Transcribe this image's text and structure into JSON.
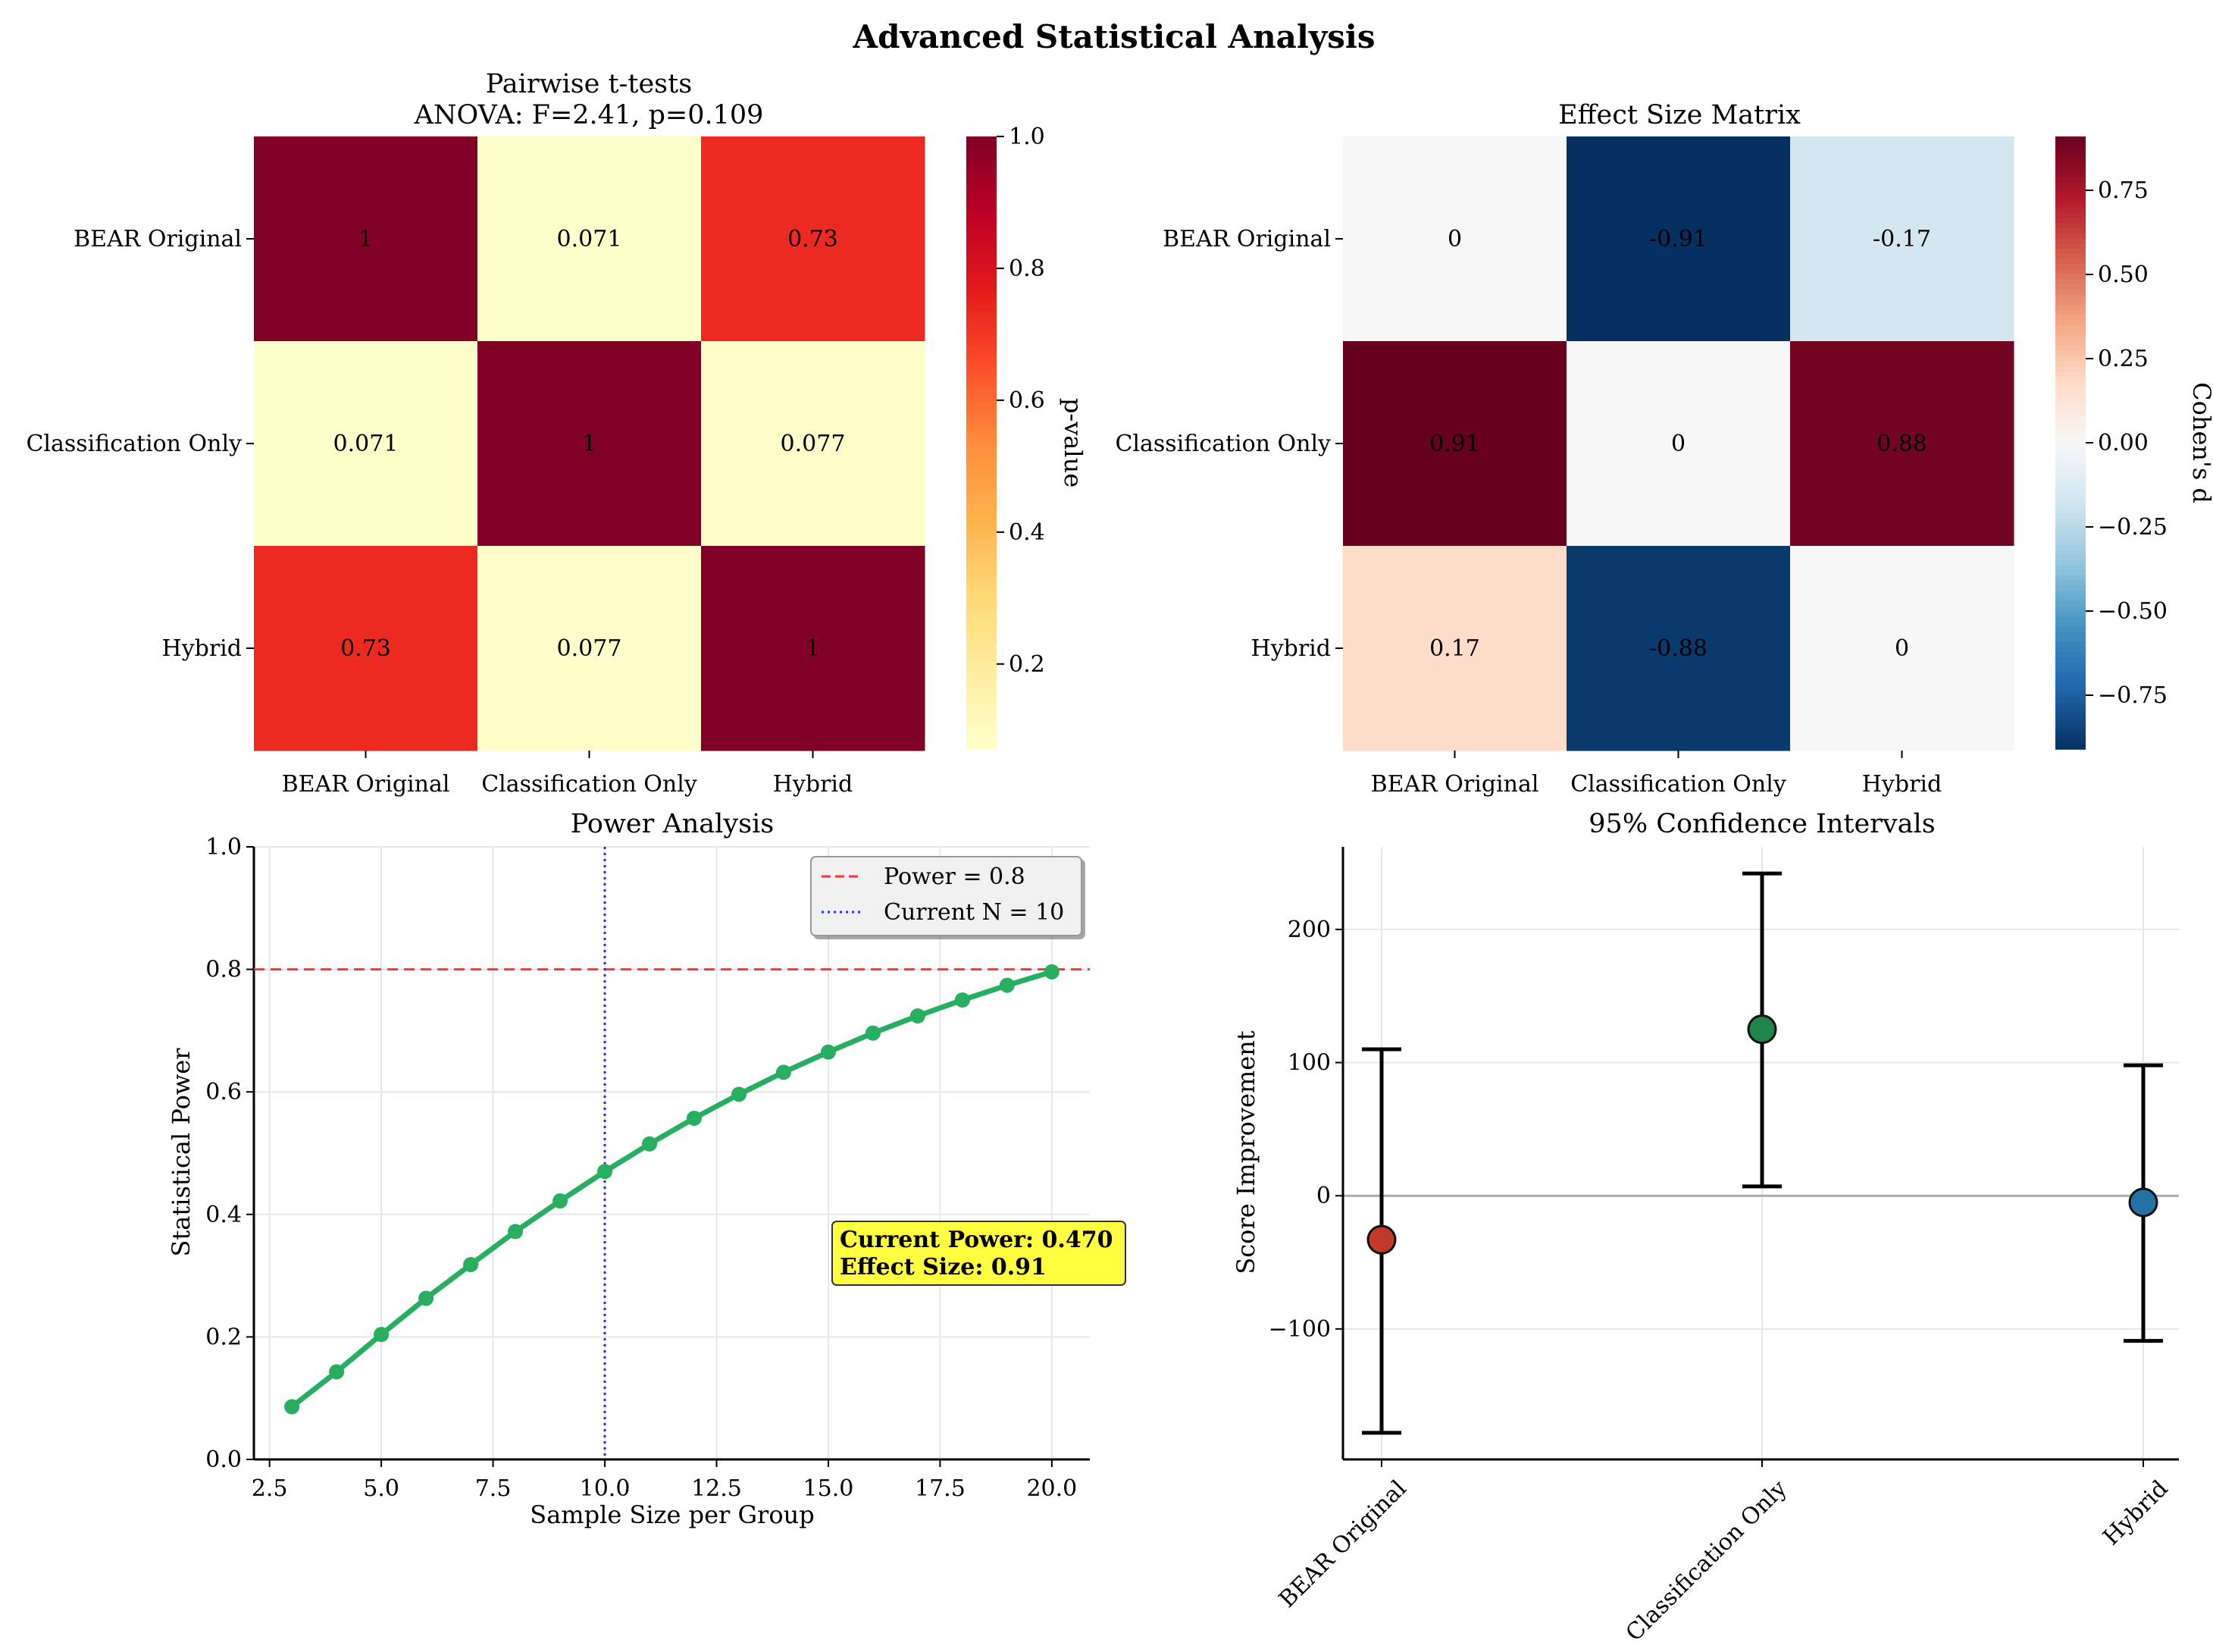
{
  "figure_title": "Advanced Statistical Analysis",
  "colors": {
    "power_line": "#27ae60",
    "threshold_line": "#ff3333",
    "current_line": "#2b2bff",
    "annotation_bg": "#ffff40",
    "ci_points": [
      "#c0392b",
      "#1e8449",
      "#2471a3"
    ]
  },
  "chart_data": [
    {
      "id": "pairwise",
      "type": "heatmap",
      "title_line1": "Pairwise t-tests",
      "title_line2": "ANOVA: F=2.41, p=0.109",
      "row_labels": [
        "BEAR Original",
        "Classification Only",
        "Hybrid"
      ],
      "col_labels": [
        "BEAR Original",
        "Classification Only",
        "Hybrid"
      ],
      "values": [
        [
          1,
          0.071,
          0.73
        ],
        [
          0.071,
          1,
          0.077
        ],
        [
          0.73,
          0.077,
          1
        ]
      ],
      "cell_labels": [
        [
          "1",
          "0.071",
          "0.73"
        ],
        [
          "0.071",
          "1",
          "0.077"
        ],
        [
          "0.73",
          "0.077",
          "1"
        ]
      ],
      "colormap": "YlOrRd",
      "colorbar": {
        "label": "p-value",
        "range": [
          0.071,
          1.0
        ],
        "ticks": [
          "0.2",
          "0.4",
          "0.6",
          "0.8",
          "1.0"
        ]
      }
    },
    {
      "id": "effect",
      "type": "heatmap",
      "title": "Effect Size Matrix",
      "row_labels": [
        "BEAR Original",
        "Classification Only",
        "Hybrid"
      ],
      "col_labels": [
        "BEAR Original",
        "Classification Only",
        "Hybrid"
      ],
      "values": [
        [
          0,
          -0.91,
          -0.17
        ],
        [
          0.91,
          0,
          0.88
        ],
        [
          0.17,
          -0.88,
          0
        ]
      ],
      "cell_labels": [
        [
          "0",
          "-0.91",
          "-0.17"
        ],
        [
          "0.91",
          "0",
          "0.88"
        ],
        [
          "0.17",
          "-0.88",
          "0"
        ]
      ],
      "colormap": "RdBu_r",
      "colorbar": {
        "label": "Cohen's d",
        "range": [
          -0.91,
          0.91
        ],
        "ticks": [
          "0.75",
          "0.50",
          "0.25",
          "0.00",
          "−0.25",
          "−0.50",
          "−0.75"
        ]
      }
    },
    {
      "id": "power",
      "type": "line",
      "title": "Power Analysis",
      "xlabel": "Sample Size per Group",
      "ylabel": "Statistical Power",
      "xlim": [
        2.15,
        20.85
      ],
      "ylim": [
        0,
        1
      ],
      "x_ticks": [
        "2.5",
        "5.0",
        "7.5",
        "10.0",
        "12.5",
        "15.0",
        "17.5",
        "20.0"
      ],
      "y_ticks": [
        "0.0",
        "0.2",
        "0.4",
        "0.6",
        "0.8",
        "1.0"
      ],
      "x": [
        3,
        4,
        5,
        6,
        7,
        8,
        9,
        10,
        11,
        12,
        13,
        14,
        15,
        16,
        17,
        18,
        19,
        20
      ],
      "y": [
        0.086,
        0.143,
        0.204,
        0.263,
        0.318,
        0.372,
        0.422,
        0.47,
        0.515,
        0.557,
        0.596,
        0.632,
        0.665,
        0.696,
        0.724,
        0.75,
        0.774,
        0.796
      ],
      "power_threshold": 0.8,
      "current_n": 10,
      "legend": [
        "Power = 0.8",
        "Current N = 10"
      ],
      "annotation": [
        "Current Power: 0.470",
        "Effect Size: 0.91"
      ],
      "grid": true
    },
    {
      "id": "ci",
      "type": "scatter",
      "title": "95% Confidence Intervals",
      "ylabel": "Score Improvement",
      "categories": [
        "BEAR Original",
        "Classification Only",
        "Hybrid"
      ],
      "means": [
        -33,
        125,
        -5
      ],
      "lower": [
        -178,
        7,
        -109
      ],
      "upper": [
        110,
        242,
        98
      ],
      "ylim": [
        -198,
        262
      ],
      "y_ticks": [
        "−100",
        "0",
        "100",
        "200"
      ],
      "y_tick_values": [
        -100,
        0,
        100,
        200
      ],
      "grid": true
    }
  ]
}
